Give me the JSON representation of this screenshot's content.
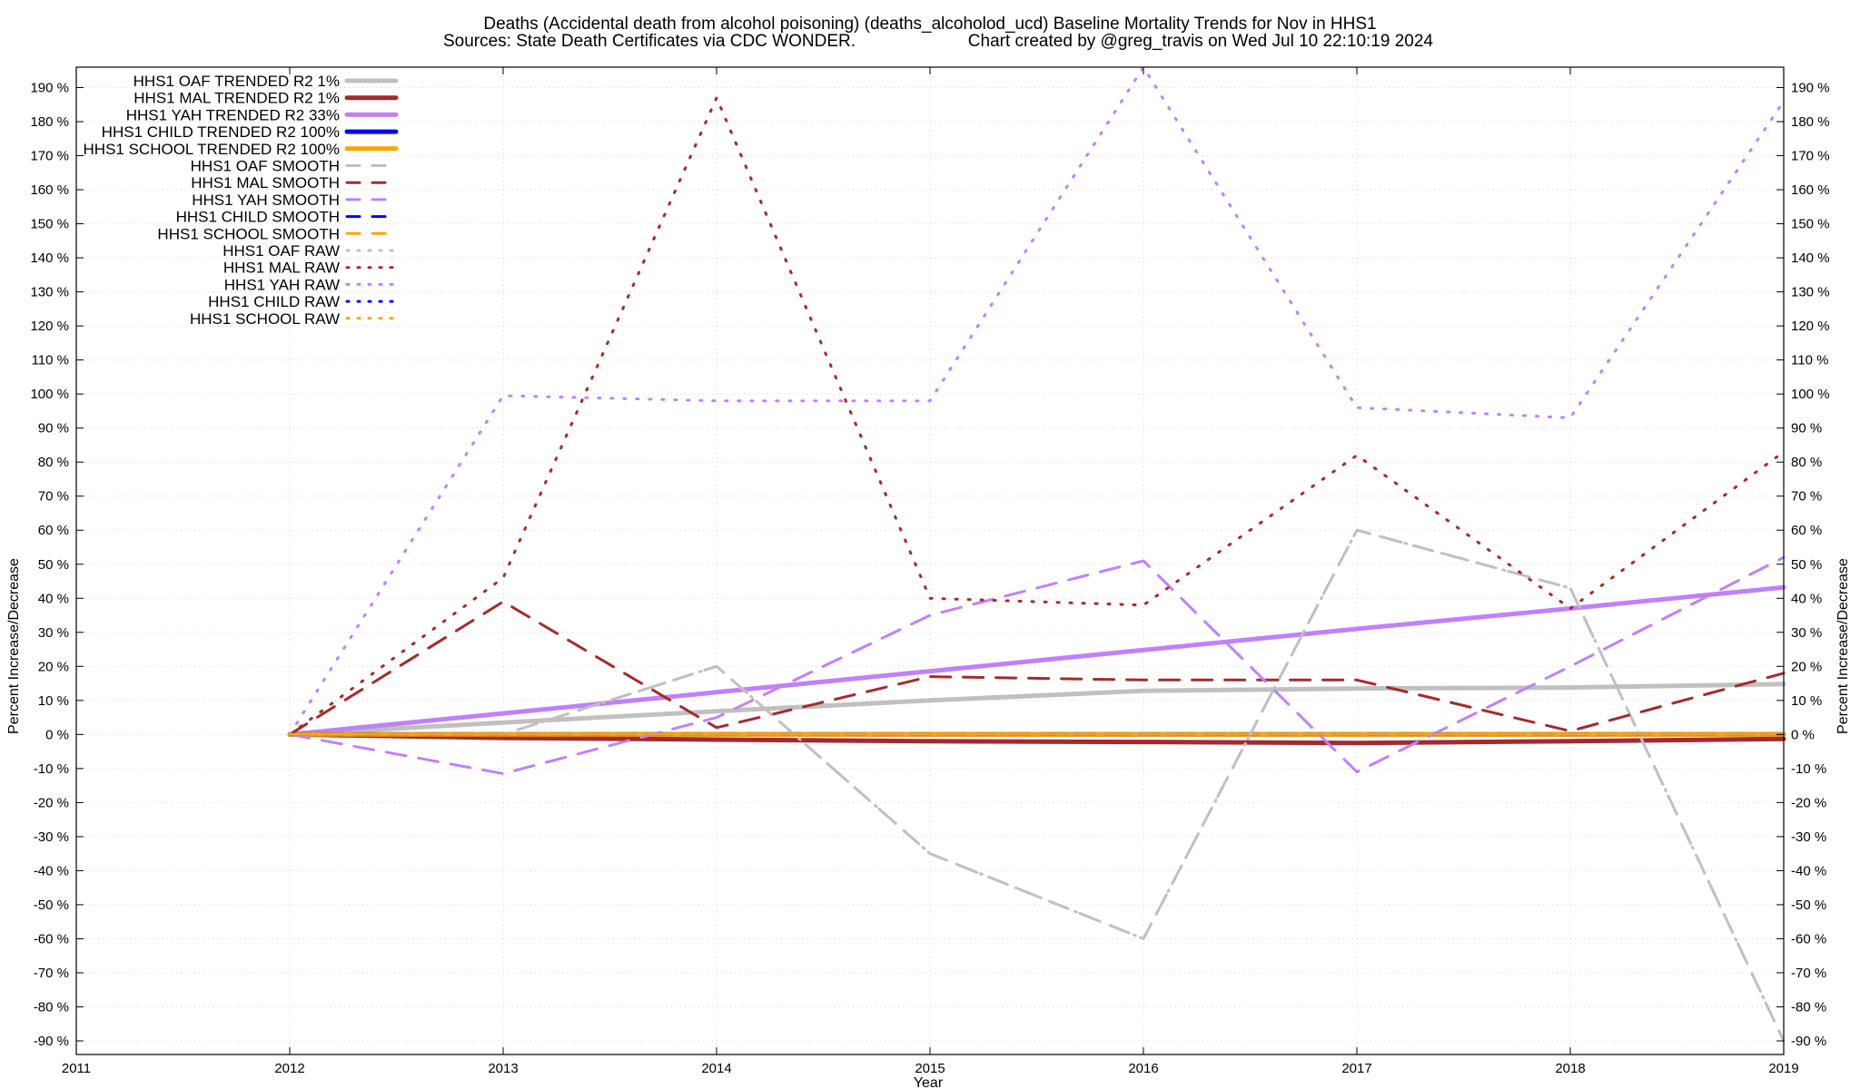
{
  "title_line1": "Deaths (Accidental death from alcohol poisoning) (deaths_alcoholod_ucd)  Baseline Mortality Trends for Nov in HHS1",
  "title_line2_left": "Sources: State Death Certificates via CDC WONDER.",
  "title_line2_right": "Chart created by @greg_travis on Wed Jul 10 22:10:19 2024",
  "chart_data": {
    "type": "line",
    "title": "Deaths (Accidental death from alcohol poisoning) (deaths_alcoholod_ucd)  Baseline Mortality Trends for Nov in HHS1",
    "xlabel": "Year",
    "ylabel": "Percent Increase/Decrease",
    "y2label": "Percent Increase/Decrease",
    "xlim": [
      2011,
      2019
    ],
    "ylim": [
      -94,
      196
    ],
    "x_ticks": [
      2011,
      2012,
      2013,
      2014,
      2015,
      2016,
      2017,
      2018,
      2019
    ],
    "y_ticks": [
      -90,
      -80,
      -70,
      -60,
      -50,
      -40,
      -30,
      -20,
      -10,
      0,
      10,
      20,
      30,
      40,
      50,
      60,
      70,
      80,
      90,
      100,
      110,
      120,
      130,
      140,
      150,
      160,
      170,
      180,
      190
    ],
    "y_tick_suffix": " %",
    "grid": true,
    "legend_position": "top-left",
    "x": [
      2012,
      2013,
      2014,
      2015,
      2016,
      2017,
      2018,
      2019
    ],
    "series": [
      {
        "name": "HHS1 OAF TRENDED R2   1%",
        "style": "solid",
        "color": "#c0c0c0",
        "values": [
          0,
          3.5,
          6.8,
          10,
          12.8,
          13.5,
          13.8,
          14.8
        ]
      },
      {
        "name": "HHS1 MAL TRENDED R2   1%",
        "style": "solid",
        "color": "#a52a2a",
        "values": [
          0,
          -1,
          -1.5,
          -2,
          -2.2,
          -2.5,
          -2,
          -1.3
        ]
      },
      {
        "name": "HHS1 YAH TRENDED R2  33%",
        "style": "solid",
        "color": "#c080ff",
        "values": [
          0,
          6.2,
          12.4,
          18.6,
          24.8,
          31,
          37,
          43.2
        ]
      },
      {
        "name": "HHS1 CHILD TRENDED R2 100%",
        "style": "solid",
        "color": "#0000ff",
        "values": [
          0,
          0,
          0,
          0,
          0,
          0,
          0,
          0
        ]
      },
      {
        "name": "HHS1 SCHOOL TRENDED R2 100%",
        "style": "solid",
        "color": "#ffa500",
        "values": [
          0,
          0,
          0,
          0,
          0,
          0,
          0,
          0
        ]
      },
      {
        "name": "HHS1 OAF SMOOTH",
        "style": "dash",
        "color": "#c0c0c0",
        "values": [
          0,
          0,
          20,
          -35,
          -60,
          60,
          43,
          -90
        ]
      },
      {
        "name": "HHS1 MAL SMOOTH",
        "style": "dash",
        "color": "#a52a2a",
        "values": [
          0,
          39,
          2,
          17,
          16,
          16,
          1,
          18
        ]
      },
      {
        "name": "HHS1 YAH SMOOTH",
        "style": "dash",
        "color": "#c080ff",
        "values": [
          0,
          -11.5,
          5,
          35,
          51,
          -11,
          20,
          52
        ]
      },
      {
        "name": "HHS1 CHILD SMOOTH",
        "style": "dash",
        "color": "#0000ff",
        "values": [
          0,
          0,
          0,
          0,
          0,
          0,
          0,
          0
        ]
      },
      {
        "name": "HHS1 SCHOOL SMOOTH",
        "style": "dash",
        "color": "#ffa500",
        "values": [
          0,
          0,
          0,
          0,
          0,
          0,
          0,
          0
        ]
      },
      {
        "name": "HHS1 OAF RAW",
        "style": "dot",
        "color": "#c0c0c0",
        "values": [
          0,
          0,
          20,
          -35,
          -60,
          60,
          43,
          -90
        ]
      },
      {
        "name": "HHS1 MAL RAW",
        "style": "dot",
        "color": "#a52a2a",
        "values": [
          0,
          46,
          187,
          40,
          38,
          82,
          37,
          83
        ]
      },
      {
        "name": "HHS1 YAH RAW",
        "style": "dot",
        "color": "#c080ff",
        "values": [
          0,
          99.5,
          98,
          98,
          196,
          96,
          93,
          186
        ]
      },
      {
        "name": "HHS1 CHILD RAW",
        "style": "dot",
        "color": "#0000ff",
        "values": [
          0,
          0,
          0,
          0,
          0,
          0,
          0,
          0
        ]
      },
      {
        "name": "HHS1 SCHOOL RAW",
        "style": "dot",
        "color": "#ffa500",
        "values": [
          0,
          0,
          0,
          0,
          0,
          0,
          0,
          0
        ]
      }
    ]
  }
}
